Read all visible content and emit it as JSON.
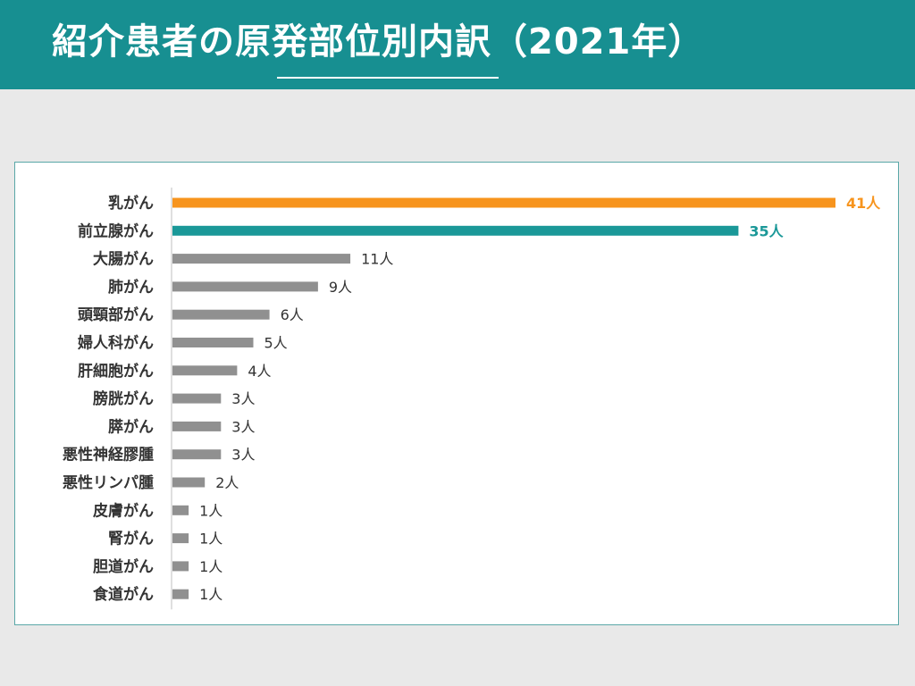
{
  "header": {
    "title": "紹介患者の原発部位別内訳（2021年）"
  },
  "colors": {
    "header_bg": "#178f91",
    "highlight_first": "#f7941d",
    "highlight_second": "#1a9898",
    "default_bar": "#909090"
  },
  "chart_data": {
    "type": "bar",
    "orientation": "horizontal",
    "title": "",
    "xlabel": "",
    "ylabel": "",
    "unit": "人",
    "categories": [
      "乳がん",
      "前立腺がん",
      "大腸がん",
      "肺がん",
      "頭頸部がん",
      "婦人科がん",
      "肝細胞がん",
      "膀胱がん",
      "膵がん",
      "悪性神経膠腫",
      "悪性リンパ腫",
      "皮膚がん",
      "腎がん",
      "胆道がん",
      "食道がん"
    ],
    "values": [
      41,
      35,
      11,
      9,
      6,
      5,
      4,
      3,
      3,
      3,
      2,
      1,
      1,
      1,
      1
    ],
    "data_labels": [
      "41人",
      "35人",
      "11人",
      "9人",
      "6人",
      "5人",
      "4人",
      "3人",
      "3人",
      "3人",
      "2人",
      "1人",
      "1人",
      "1人",
      "1人"
    ],
    "xlim": [
      0,
      41
    ],
    "grid": false,
    "legend": "none"
  }
}
